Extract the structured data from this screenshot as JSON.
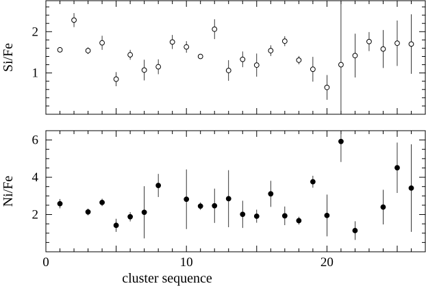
{
  "chart_data": [
    {
      "type": "scatter",
      "marker": "open-circle",
      "xlabel": "",
      "ylabel": "Si/Fe",
      "xlim": [
        0,
        27
      ],
      "ylim": [
        0,
        2.75
      ],
      "xticks": [
        0,
        10,
        20
      ],
      "yticks": [
        1,
        2
      ],
      "series": [
        {
          "points": [
            {
              "x": 1,
              "y": 1.56,
              "err": 0.06
            },
            {
              "x": 2,
              "y": 2.28,
              "err": 0.17
            },
            {
              "x": 3,
              "y": 1.54,
              "err": 0.08
            },
            {
              "x": 4,
              "y": 1.73,
              "err": 0.17
            },
            {
              "x": 5,
              "y": 0.85,
              "err": 0.17
            },
            {
              "x": 6,
              "y": 1.44,
              "err": 0.12
            },
            {
              "x": 7,
              "y": 1.07,
              "err": 0.25
            },
            {
              "x": 8,
              "y": 1.15,
              "err": 0.18
            },
            {
              "x": 9,
              "y": 1.75,
              "err": 0.17
            },
            {
              "x": 10,
              "y": 1.63,
              "err": 0.14
            },
            {
              "x": 11,
              "y": 1.4,
              "err": 0.04
            },
            {
              "x": 12,
              "y": 2.06,
              "err": 0.24
            },
            {
              "x": 13,
              "y": 1.06,
              "err": 0.25
            },
            {
              "x": 14,
              "y": 1.33,
              "err": 0.19
            },
            {
              "x": 15,
              "y": 1.19,
              "err": 0.28
            },
            {
              "x": 16,
              "y": 1.54,
              "err": 0.13
            },
            {
              "x": 17,
              "y": 1.77,
              "err": 0.12
            },
            {
              "x": 18,
              "y": 1.31,
              "err": 0.1
            },
            {
              "x": 19,
              "y": 1.09,
              "err": 0.3
            },
            {
              "x": 20,
              "y": 0.65,
              "err": 0.3
            },
            {
              "x": 21,
              "y": 1.2,
              "err": 1.9
            },
            {
              "x": 22,
              "y": 1.42,
              "err": 0.53
            },
            {
              "x": 23,
              "y": 1.76,
              "err": 0.23
            },
            {
              "x": 24,
              "y": 1.58,
              "err": 0.46
            },
            {
              "x": 25,
              "y": 1.72,
              "err": 0.55
            },
            {
              "x": 26,
              "y": 1.7,
              "err": 0.72
            }
          ]
        }
      ]
    },
    {
      "type": "scatter",
      "marker": "filled-circle",
      "xlabel": "cluster sequence",
      "ylabel": "Ni/Fe",
      "xlim": [
        0,
        27
      ],
      "ylim": [
        0,
        6.5
      ],
      "xticks": [
        0,
        10,
        20
      ],
      "yticks": [
        2,
        4,
        6
      ],
      "series": [
        {
          "points": [
            {
              "x": 1,
              "y": 2.58,
              "err": 0.25
            },
            {
              "x": 3,
              "y": 2.14,
              "err": 0.18
            },
            {
              "x": 4,
              "y": 2.65,
              "err": 0.2
            },
            {
              "x": 5,
              "y": 1.42,
              "err": 0.35
            },
            {
              "x": 6,
              "y": 1.88,
              "err": 0.25
            },
            {
              "x": 7,
              "y": 2.12,
              "err": 1.4
            },
            {
              "x": 8,
              "y": 3.56,
              "err": 0.62
            },
            {
              "x": 10,
              "y": 2.82,
              "err": 1.6
            },
            {
              "x": 11,
              "y": 2.45,
              "err": 0.2
            },
            {
              "x": 12,
              "y": 2.47,
              "err": 0.92
            },
            {
              "x": 13,
              "y": 2.85,
              "err": 1.53
            },
            {
              "x": 14,
              "y": 2.01,
              "err": 0.73
            },
            {
              "x": 15,
              "y": 1.91,
              "err": 0.35
            },
            {
              "x": 16,
              "y": 3.11,
              "err": 0.7
            },
            {
              "x": 17,
              "y": 1.93,
              "err": 0.5
            },
            {
              "x": 18,
              "y": 1.67,
              "err": 0.21
            },
            {
              "x": 19,
              "y": 3.76,
              "err": 0.32
            },
            {
              "x": 20,
              "y": 1.95,
              "err": 1.12
            },
            {
              "x": 21,
              "y": 5.92,
              "err": 1.1
            },
            {
              "x": 22,
              "y": 1.14,
              "err": 0.5
            },
            {
              "x": 24,
              "y": 2.4,
              "err": 0.93
            },
            {
              "x": 25,
              "y": 4.51,
              "err": 1.35
            },
            {
              "x": 26,
              "y": 3.42,
              "err": 2.35
            }
          ]
        }
      ]
    }
  ]
}
